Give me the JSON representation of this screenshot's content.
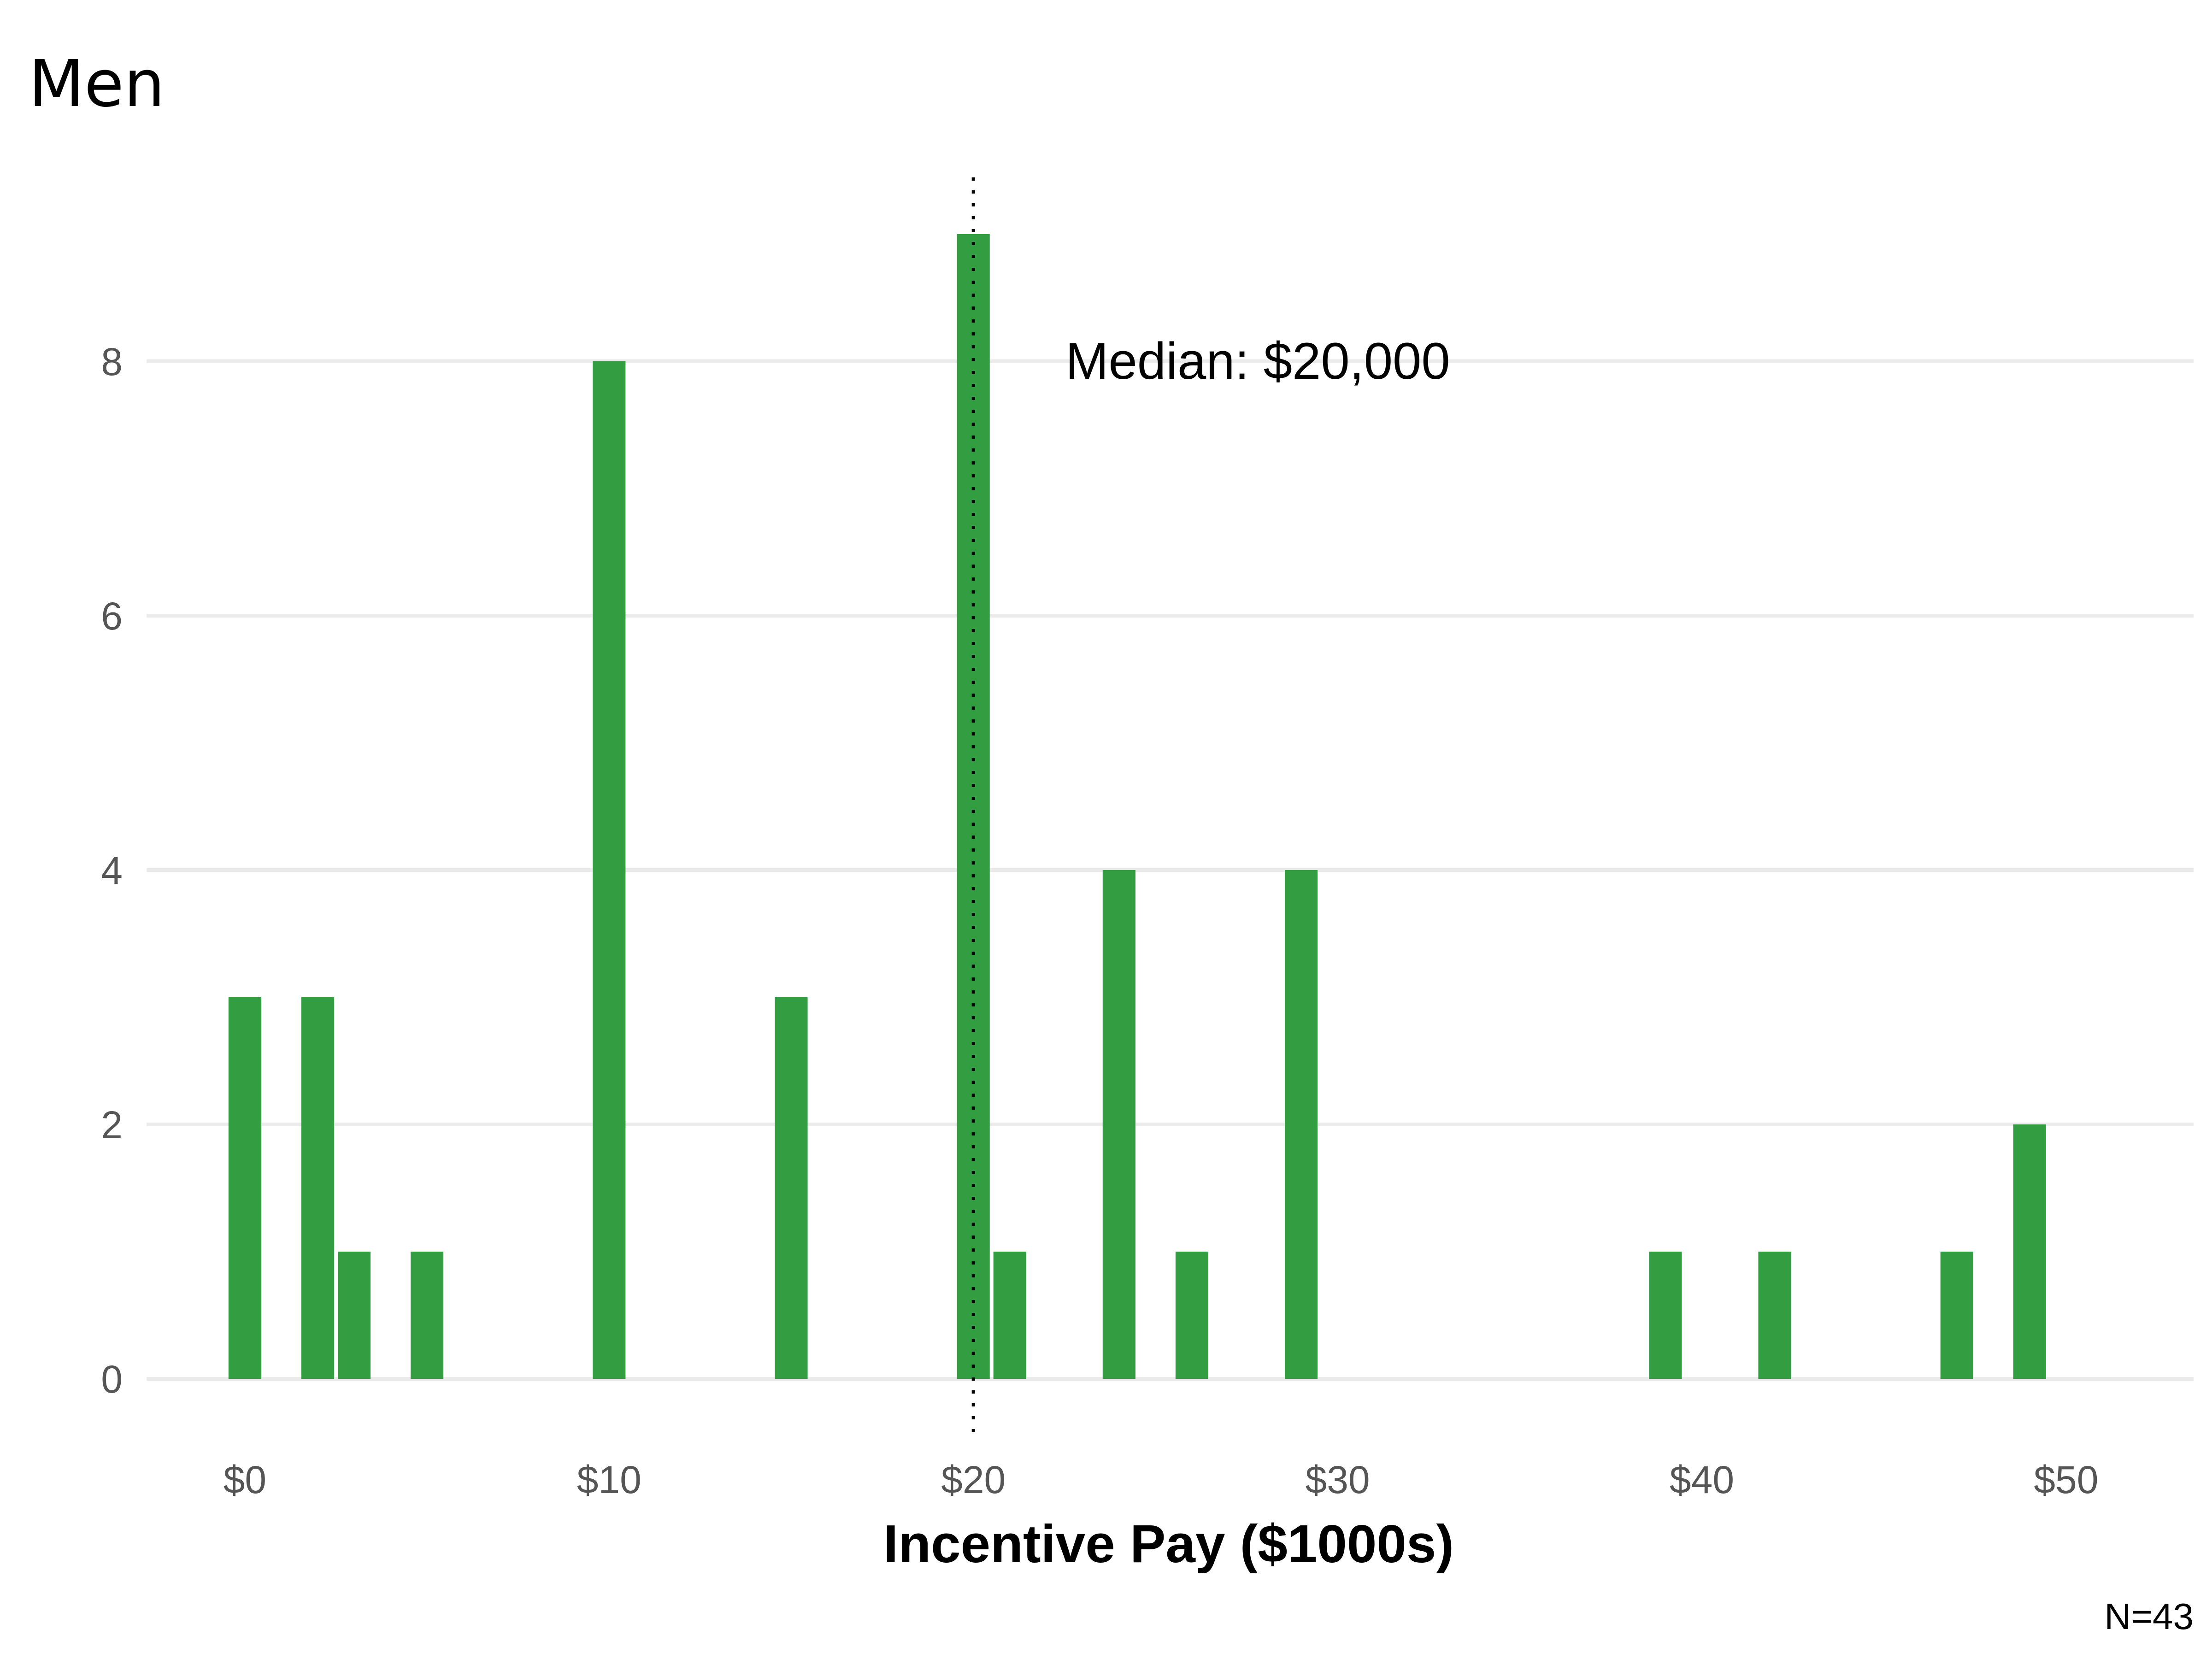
{
  "chart_data": {
    "type": "bar",
    "title": "Men",
    "xlabel": "Incentive Pay ($1000s)",
    "ylabel": "",
    "caption": "N=43",
    "bar_color": "#339d42",
    "grid": true,
    "xlim": [
      -2.7,
      53.5
    ],
    "ylim": [
      -0.5,
      9.5
    ],
    "x_ticks": [
      0,
      10,
      20,
      30,
      40,
      50
    ],
    "x_tick_labels": [
      "$0",
      "$10",
      "$20",
      "$30",
      "$40",
      "$50"
    ],
    "y_ticks": [
      0,
      2,
      4,
      6,
      8
    ],
    "y_tick_labels": [
      "0",
      "2",
      "4",
      "6",
      "8"
    ],
    "bin_width": 1,
    "bars": [
      {
        "x": 0,
        "count": 3
      },
      {
        "x": 2,
        "count": 3
      },
      {
        "x": 3,
        "count": 1
      },
      {
        "x": 5,
        "count": 1
      },
      {
        "x": 10,
        "count": 8
      },
      {
        "x": 15,
        "count": 3
      },
      {
        "x": 20,
        "count": 9
      },
      {
        "x": 21,
        "count": 1
      },
      {
        "x": 24,
        "count": 4
      },
      {
        "x": 26,
        "count": 1
      },
      {
        "x": 29,
        "count": 4
      },
      {
        "x": 39,
        "count": 1
      },
      {
        "x": 42,
        "count": 1
      },
      {
        "x": 47,
        "count": 1
      },
      {
        "x": 49,
        "count": 2
      }
    ],
    "median": {
      "value": 20,
      "label": "Median: $20,000"
    }
  }
}
